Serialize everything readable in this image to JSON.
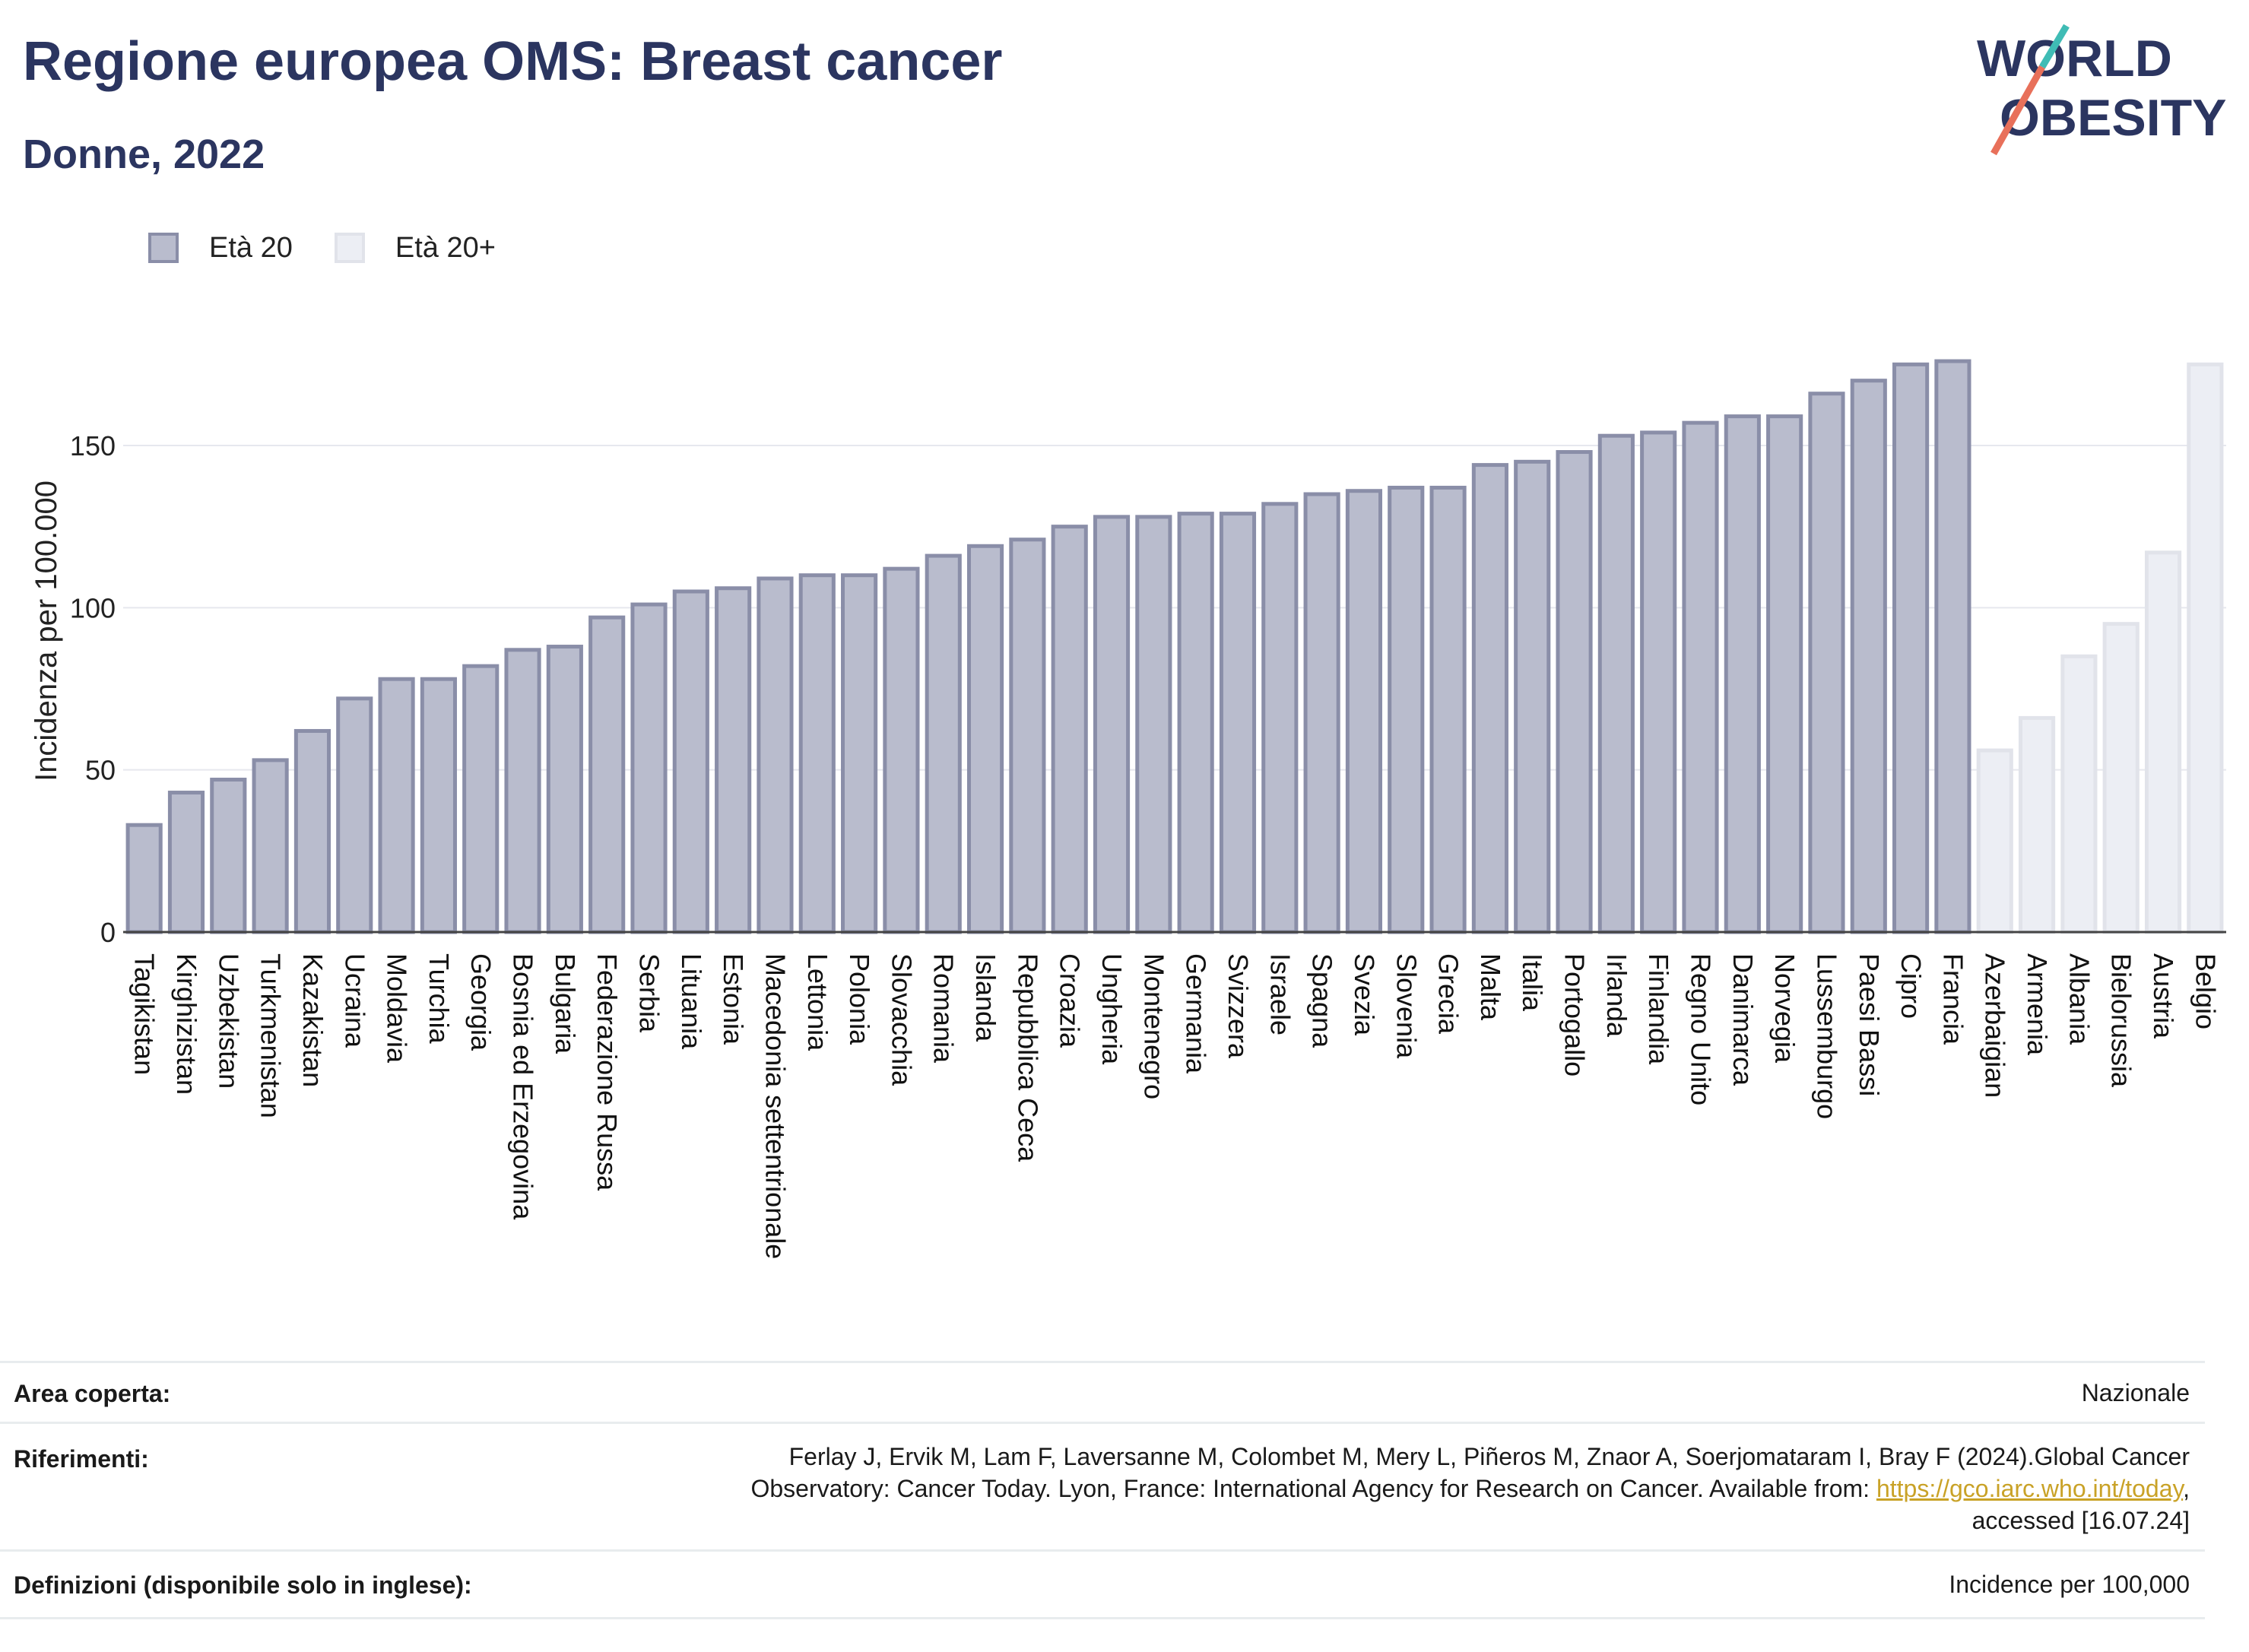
{
  "header": {
    "title": "Regione europea OMS: Breast cancer",
    "subtitle": "Donne, 2022"
  },
  "logo": {
    "line1": "WORLD",
    "line2": "OBESITY"
  },
  "legend": [
    {
      "label": "Età 20",
      "color": "#b9bccd"
    },
    {
      "label": "Età 20+",
      "color": "#eceef4"
    }
  ],
  "chart_data": {
    "type": "bar",
    "title": "Regione europea OMS: Breast cancer",
    "subtitle": "Donne, 2022",
    "xlabel": "",
    "ylabel": "Incidenza per 100.000",
    "ylim": [
      0,
      190
    ],
    "yticks": [
      0,
      50,
      100,
      150
    ],
    "grid": true,
    "legend_position": "top-left",
    "series": [
      {
        "name": "Età 20",
        "color": "#b9bccd",
        "edge_color": "#8a8ea8",
        "categories": [
          "Tagikistan",
          "Kirghizistan",
          "Uzbekistan",
          "Turkmenistan",
          "Kazakistan",
          "Ucraina",
          "Moldavia",
          "Turchia",
          "Georgia",
          "Bosnia ed Erzegovina",
          "Bulgaria",
          "Federazione Russa",
          "Serbia",
          "Lituania",
          "Estonia",
          "Macedonia settentrionale",
          "Lettonia",
          "Polonia",
          "Slovacchia",
          "Romania",
          "Islanda",
          "Repubblica Ceca",
          "Croazia",
          "Ungheria",
          "Montenegro",
          "Germania",
          "Svizzera",
          "Israele",
          "Spagna",
          "Svezia",
          "Slovenia",
          "Grecia",
          "Malta",
          "Italia",
          "Portogallo",
          "Irlanda",
          "Finlandia",
          "Regno Unito",
          "Danimarca",
          "Norvegia",
          "Lussemburgo",
          "Paesi Bassi",
          "Cipro",
          "Francia"
        ],
        "values": [
          33,
          43,
          47,
          53,
          62,
          72,
          78,
          78,
          82,
          87,
          88,
          97,
          101,
          105,
          106,
          109,
          110,
          110,
          112,
          116,
          119,
          121,
          125,
          128,
          128,
          129,
          129,
          132,
          135,
          136,
          137,
          137,
          144,
          145,
          148,
          153,
          154,
          157,
          159,
          159,
          166,
          170,
          175,
          176
        ]
      },
      {
        "name": "Età 20+",
        "color": "#eceef4",
        "edge_color": "#e1e3ea",
        "categories": [
          "Azerbaigian",
          "Armenia",
          "Albania",
          "Bielorussia",
          "Austria",
          "Belgio"
        ],
        "values": [
          56,
          66,
          85,
          95,
          117,
          175
        ]
      }
    ]
  },
  "footer": {
    "area_label": "Area coperta:",
    "area_value": "Nazionale",
    "ref_label": "Riferimenti:",
    "ref_line1": "Ferlay J, Ervik M, Lam F, Laversanne M, Colombet M, Mery L, Piñeros M, Znaor A, Soerjomataram I, Bray F (2024).Global Cancer",
    "ref_line2_pre": "Observatory: Cancer Today. Lyon, France: International Agency for Research on Cancer. Available from: ",
    "ref_link": "https://gco.iarc.who.int/today",
    "ref_line2_post": ",",
    "ref_line3": "accessed [16.07.24]",
    "def_label": "Definizioni (disponibile solo in inglese):",
    "def_value": "Incidence per 100,000"
  }
}
